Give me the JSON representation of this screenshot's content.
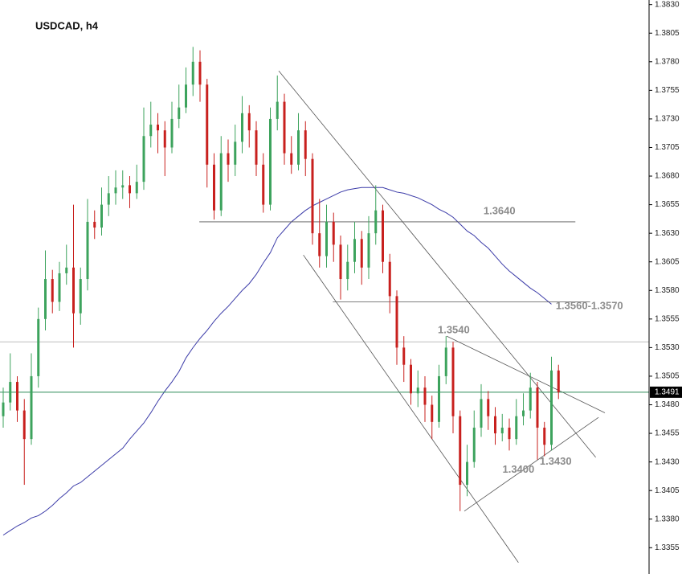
{
  "chart_data": {
    "type": "candlestick",
    "title": "USDCAD, h4",
    "ylim": [
      1.3332,
      1.3834
    ],
    "yticks": [
      {
        "value": 1.383,
        "label": "1.3830"
      },
      1.3805,
      {
        "value": 1.378,
        "label": "1.3780"
      },
      1.3755,
      {
        "value": 1.373,
        "label": "1.3730"
      },
      1.3705,
      {
        "value": 1.368,
        "label": "1.3680"
      },
      1.3655,
      {
        "value": 1.363,
        "label": "1.3630"
      },
      1.3605,
      {
        "value": 1.358,
        "label": "1.3580"
      },
      1.3555,
      {
        "value": 1.353,
        "label": "1.3530"
      },
      1.3505,
      {
        "value": 1.348,
        "label": "1.3480"
      },
      1.3455,
      {
        "value": 1.343,
        "label": "1.3430"
      },
      1.3405,
      {
        "value": 1.338,
        "label": "1.3380"
      },
      1.3355
    ],
    "up_color": "#3da35d",
    "down_color": "#c8201e",
    "open": [
      1.347,
      1.3482,
      1.35,
      1.3475,
      1.345,
      1.3505,
      1.3555,
      1.359,
      1.357,
      1.3595,
      1.36,
      1.356,
      1.359,
      1.364,
      1.3635,
      1.3655,
      1.3665,
      1.367,
      1.3672,
      1.3665,
      1.3675,
      1.3715,
      1.3725,
      1.372,
      1.3705,
      1.373,
      1.374,
      1.376,
      1.378,
      1.376,
      1.369,
      1.365,
      1.37,
      1.369,
      1.371,
      1.3735,
      1.372,
      1.369,
      1.3655,
      1.373,
      1.3745,
      1.37,
      1.369,
      1.372,
      1.3695,
      1.363,
      1.361,
      1.364,
      1.362,
      1.359,
      1.3605,
      1.3625,
      1.36,
      1.363,
      1.365,
      1.3605,
      1.3575,
      1.353,
      1.3515,
      1.349,
      1.3495,
      1.348,
      1.3465,
      1.3505,
      1.353,
      1.347,
      1.341,
      1.343,
      1.346,
      1.3485,
      1.347,
      1.3455,
      1.346,
      1.345,
      1.347,
      1.3475,
      1.3495,
      1.346,
      1.3445,
      1.351
    ],
    "high": [
      1.3495,
      1.3525,
      1.3505,
      1.3485,
      1.3525,
      1.3565,
      1.3615,
      1.3598,
      1.3605,
      1.362,
      1.3655,
      1.36,
      1.366,
      1.365,
      1.367,
      1.368,
      1.3685,
      1.3685,
      1.368,
      1.369,
      1.374,
      1.3745,
      1.3735,
      1.3728,
      1.3745,
      1.376,
      1.3775,
      1.3793,
      1.379,
      1.3765,
      1.37,
      1.3715,
      1.3712,
      1.3725,
      1.375,
      1.3742,
      1.3728,
      1.37,
      1.374,
      1.3768,
      1.3752,
      1.3715,
      1.3735,
      1.3728,
      1.37,
      1.366,
      1.3655,
      1.3648,
      1.3628,
      1.362,
      1.364,
      1.3632,
      1.3645,
      1.3672,
      1.3655,
      1.3612,
      1.358,
      1.354,
      1.352,
      1.351,
      1.3505,
      1.3488,
      1.3515,
      1.354,
      1.3535,
      1.3475,
      1.3445,
      1.3475,
      1.3498,
      1.3492,
      1.3478,
      1.3472,
      1.3468,
      1.3485,
      1.349,
      1.3508,
      1.35,
      1.3465,
      1.3522,
      1.3515
    ],
    "low": [
      1.346,
      1.3475,
      1.3465,
      1.341,
      1.3445,
      1.3495,
      1.3545,
      1.356,
      1.3562,
      1.3585,
      1.353,
      1.355,
      1.358,
      1.3625,
      1.3628,
      1.3645,
      1.3655,
      1.366,
      1.3652,
      1.366,
      1.3668,
      1.3705,
      1.37,
      1.368,
      1.37,
      1.3722,
      1.3735,
      1.375,
      1.3745,
      1.367,
      1.3642,
      1.3645,
      1.3675,
      1.368,
      1.37,
      1.3705,
      1.368,
      1.3648,
      1.365,
      1.372,
      1.369,
      1.3682,
      1.3685,
      1.368,
      1.362,
      1.36,
      1.36,
      1.3605,
      1.3572,
      1.358,
      1.3595,
      1.3585,
      1.359,
      1.362,
      1.3595,
      1.356,
      1.3515,
      1.35,
      1.348,
      1.3478,
      1.3465,
      1.345,
      1.346,
      1.3498,
      1.3455,
      1.3387,
      1.34,
      1.3425,
      1.3452,
      1.3458,
      1.3445,
      1.3448,
      1.344,
      1.3445,
      1.3462,
      1.3468,
      1.3432,
      1.3435,
      1.344,
      1.3485
    ],
    "close": [
      1.3482,
      1.35,
      1.3475,
      1.345,
      1.3505,
      1.3555,
      1.359,
      1.357,
      1.3595,
      1.36,
      1.356,
      1.359,
      1.364,
      1.3635,
      1.3655,
      1.3665,
      1.367,
      1.3672,
      1.3665,
      1.3675,
      1.3715,
      1.3725,
      1.372,
      1.3705,
      1.373,
      1.374,
      1.376,
      1.378,
      1.376,
      1.369,
      1.365,
      1.37,
      1.369,
      1.371,
      1.3735,
      1.372,
      1.369,
      1.3655,
      1.373,
      1.3745,
      1.37,
      1.369,
      1.372,
      1.3695,
      1.363,
      1.361,
      1.364,
      1.362,
      1.359,
      1.3605,
      1.3625,
      1.36,
      1.363,
      1.365,
      1.3605,
      1.3575,
      1.353,
      1.3515,
      1.349,
      1.3495,
      1.348,
      1.3465,
      1.3505,
      1.353,
      1.347,
      1.341,
      1.343,
      1.346,
      1.3485,
      1.347,
      1.3455,
      1.346,
      1.345,
      1.347,
      1.3475,
      1.3495,
      1.346,
      1.3445,
      1.351,
      1.3491
    ],
    "moving_average": {
      "color": "#3b3ba8",
      "values": [
        1.3366,
        1.337,
        1.3374,
        1.3377,
        1.3381,
        1.3383,
        1.3387,
        1.3392,
        1.3398,
        1.3403,
        1.3409,
        1.3412,
        1.3417,
        1.3422,
        1.3427,
        1.3432,
        1.3437,
        1.3442,
        1.345,
        1.3457,
        1.3464,
        1.3473,
        1.3483,
        1.3492,
        1.35,
        1.3509,
        1.3521,
        1.353,
        1.3538,
        1.3545,
        1.3553,
        1.356,
        1.3566,
        1.3573,
        1.358,
        1.3586,
        1.3594,
        1.3604,
        1.3613,
        1.3626,
        1.3633,
        1.364,
        1.3645,
        1.365,
        1.3654,
        1.3657,
        1.366,
        1.3663,
        1.3666,
        1.3668,
        1.3669,
        1.367,
        1.367,
        1.367,
        1.367,
        1.3668,
        1.3666,
        1.3665,
        1.3663,
        1.3661,
        1.3658,
        1.3655,
        1.3651,
        1.3648,
        1.3644,
        1.3638,
        1.3632,
        1.3628,
        1.3622,
        1.3617,
        1.361,
        1.3603,
        1.3597,
        1.3592,
        1.3587,
        1.3582,
        1.3578,
        1.3573,
        1.3568,
        null
      ]
    },
    "current_price": 1.3491,
    "current_color": "#2e8b57",
    "levels": [
      {
        "value": 1.3535,
        "color": "#bdbdbd"
      }
    ],
    "segments": [
      {
        "x": [
          27.9,
          81.4
        ],
        "y": [
          1.364,
          1.364
        ]
      },
      {
        "x": [
          46.9,
          83.5
        ],
        "y": [
          1.357,
          1.357
        ]
      },
      {
        "x": [
          39.2,
          84.3
        ],
        "y": [
          1.3772,
          1.3434
        ]
      },
      {
        "x": [
          42.7,
          73.3
        ],
        "y": [
          1.3611,
          1.3342
        ]
      },
      {
        "x": [
          63.1,
          85.6
        ],
        "y": [
          1.354,
          1.3473
        ]
      },
      {
        "x": [
          65.6,
          84.7
        ],
        "y": [
          1.3387,
          1.3469
        ]
      }
    ],
    "segment_color": "#555555",
    "annotations": [
      {
        "text": "1.3640",
        "x": 70.6,
        "y": 1.3649
      },
      {
        "text": "1.3560-1.3570",
        "x": 83.4,
        "y": 1.3566
      },
      {
        "text": "1.3540",
        "x": 64.1,
        "y": 1.3545
      },
      {
        "text": "1.3400",
        "x": 73.3,
        "y": 1.3423
      },
      {
        "text": "1.3430",
        "x": 78.6,
        "y": 1.343
      }
    ]
  }
}
